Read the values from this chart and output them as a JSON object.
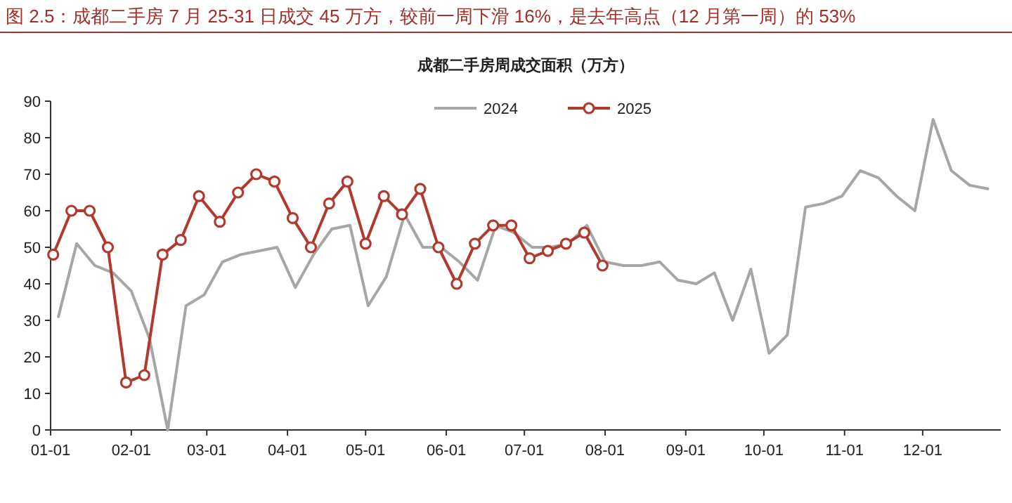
{
  "chart_data": {
    "type": "line",
    "title": "图 2.5：成都二手房 7 月 25-31 日成交 45 万方，较前一周下滑 16%，是去年高点（12 月第一周）的 53%",
    "subtitle": "成都二手房周成交面积（万方）",
    "xlim": [
      "--01-01",
      "--12-31"
    ],
    "xticks": [
      {
        "value": "--01-01",
        "label": "01-01"
      },
      {
        "value": "--02-01",
        "label": "02-01"
      },
      {
        "value": "--03-01",
        "label": "03-01"
      },
      {
        "value": "--04-01",
        "label": "04-01"
      },
      {
        "value": "--05-01",
        "label": "05-01"
      },
      {
        "value": "--06-01",
        "label": "06-01"
      },
      {
        "value": "--07-01",
        "label": "07-01"
      },
      {
        "value": "--08-01",
        "label": "08-01"
      },
      {
        "value": "--09-01",
        "label": "09-01"
      },
      {
        "value": "--10-01",
        "label": "10-01"
      },
      {
        "value": "--11-01",
        "label": "11-01"
      },
      {
        "value": "--12-01",
        "label": "12-01"
      }
    ],
    "ylim": [
      0,
      90
    ],
    "yticks": [
      0,
      10,
      20,
      30,
      40,
      50,
      60,
      70,
      80,
      90
    ],
    "grid": false,
    "legend": "top",
    "series": [
      {
        "name": "2024",
        "color": "#a6a6a6",
        "marker": "none",
        "x": [
          "--01-04",
          "--01-11",
          "--01-18",
          "--01-25",
          "--02-01",
          "--02-08",
          "--02-15",
          "--02-22",
          "--02-29",
          "--03-07",
          "--03-14",
          "--03-21",
          "--03-28",
          "--04-04",
          "--04-11",
          "--04-18",
          "--04-25",
          "--05-02",
          "--05-09",
          "--05-16",
          "--05-23",
          "--05-30",
          "--06-06",
          "--06-13",
          "--06-20",
          "--06-27",
          "--07-04",
          "--07-11",
          "--07-18",
          "--07-25",
          "--08-01",
          "--08-08",
          "--08-15",
          "--08-22",
          "--08-29",
          "--09-05",
          "--09-12",
          "--09-19",
          "--09-26",
          "--10-03",
          "--10-10",
          "--10-17",
          "--10-24",
          "--10-31",
          "--11-07",
          "--11-14",
          "--11-21",
          "--11-28",
          "--12-05",
          "--12-12",
          "--12-19",
          "--12-26"
        ],
        "values": [
          31,
          51,
          45,
          43,
          38,
          25,
          0,
          34,
          37,
          46,
          48,
          49,
          50,
          39,
          48,
          55,
          56,
          34,
          42,
          59,
          50,
          50,
          46,
          41,
          56,
          54,
          50,
          50,
          51,
          56,
          46,
          45,
          45,
          46,
          41,
          40,
          43,
          30,
          44,
          21,
          26,
          61,
          62,
          64,
          71,
          69,
          64,
          60,
          85,
          71,
          67,
          66
        ]
      },
      {
        "name": "2025",
        "color": "#b03a2e",
        "marker": "circle",
        "x": [
          "--01-02",
          "--01-09",
          "--01-16",
          "--01-23",
          "--01-30",
          "--02-06",
          "--02-13",
          "--02-20",
          "--02-27",
          "--03-06",
          "--03-13",
          "--03-20",
          "--03-27",
          "--04-03",
          "--04-10",
          "--04-17",
          "--04-24",
          "--05-01",
          "--05-08",
          "--05-15",
          "--05-22",
          "--05-29",
          "--06-05",
          "--06-12",
          "--06-19",
          "--06-26",
          "--07-03",
          "--07-10",
          "--07-17",
          "--07-24",
          "--07-31"
        ],
        "values": [
          48,
          60,
          60,
          50,
          13,
          15,
          48,
          52,
          64,
          57,
          65,
          70,
          68,
          58,
          50,
          62,
          68,
          51,
          64,
          59,
          66,
          50,
          40,
          51,
          56,
          56,
          47,
          49,
          51,
          54,
          45
        ]
      }
    ]
  }
}
